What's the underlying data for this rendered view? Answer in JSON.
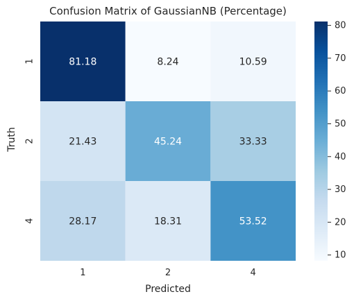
{
  "chart_data": {
    "type": "heatmap",
    "title": "Confusion Matrix of GaussianNB (Percentage)",
    "xlabel": "Predicted",
    "ylabel": "Truth",
    "x_categories": [
      "1",
      "2",
      "4"
    ],
    "y_categories": [
      "1",
      "2",
      "4"
    ],
    "values": [
      [
        81.18,
        8.24,
        10.59
      ],
      [
        21.43,
        45.24,
        33.33
      ],
      [
        28.17,
        18.31,
        53.52
      ]
    ],
    "value_labels": [
      [
        "81.18",
        "8.24",
        "10.59"
      ],
      [
        "21.43",
        "45.24",
        "33.33"
      ],
      [
        "28.17",
        "18.31",
        "53.52"
      ]
    ],
    "colormap": "Blues",
    "colorbar": {
      "min": 8.24,
      "max": 81.18,
      "ticks": [
        10,
        20,
        30,
        40,
        50,
        60,
        70,
        80
      ],
      "tick_labels": [
        "10",
        "20",
        "30",
        "40",
        "50",
        "60",
        "70",
        "80"
      ]
    },
    "grid": false,
    "legend": "colorbar-right"
  }
}
